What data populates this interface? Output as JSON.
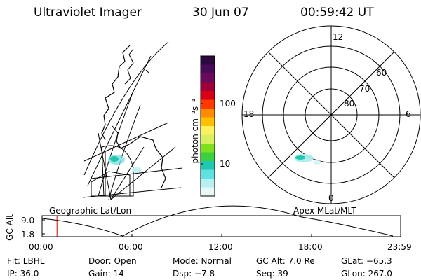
{
  "header": {
    "instrument": "Ultraviolet Imager",
    "date": "30 Jun 07",
    "time": "00:59:42 UT"
  },
  "colorbar": {
    "unit_label": "photon cm⁻²s⁻¹",
    "ticks": [
      "100",
      "10"
    ],
    "colors": [
      "#2a0a3c",
      "#4a0a5a",
      "#6a0a5a",
      "#a0003a",
      "#d60018",
      "#ff3a00",
      "#ff8c00",
      "#ffc000",
      "#fff060",
      "#d8f060",
      "#7ee020",
      "#3cd040",
      "#20c8b0",
      "#60e0e0",
      "#b8f0f0",
      "#e8f8f8"
    ]
  },
  "map_left": {
    "label": "Geographic Lat/Lon"
  },
  "map_right": {
    "label": "Apex MLat/MLT",
    "mlt_labels": {
      "top": "12",
      "left": "18",
      "right": "6",
      "bottom": "0"
    },
    "mlat_labels": [
      "60",
      "70",
      "80"
    ]
  },
  "altitude_plot": {
    "ylabel": "GC Alt",
    "yticks": [
      "9.0",
      "1.8"
    ],
    "xticks": [
      "00:00",
      "06:00",
      "12:00",
      "18:00",
      "23:59"
    ],
    "current_time_hours": 0.995
  },
  "info": {
    "filter": "Flt: LBHL",
    "door": "Door: Open",
    "mode": "Mode: Normal",
    "gc_alt": "GC Alt: 7.0 Re",
    "glat": "GLat: −65.3",
    "ip": "IP: 36.0",
    "gain": "Gain: 14",
    "dsp": "Dsp:    −7.8",
    "seq": "Seq: 39",
    "glon": "GLon: 267.0"
  }
}
